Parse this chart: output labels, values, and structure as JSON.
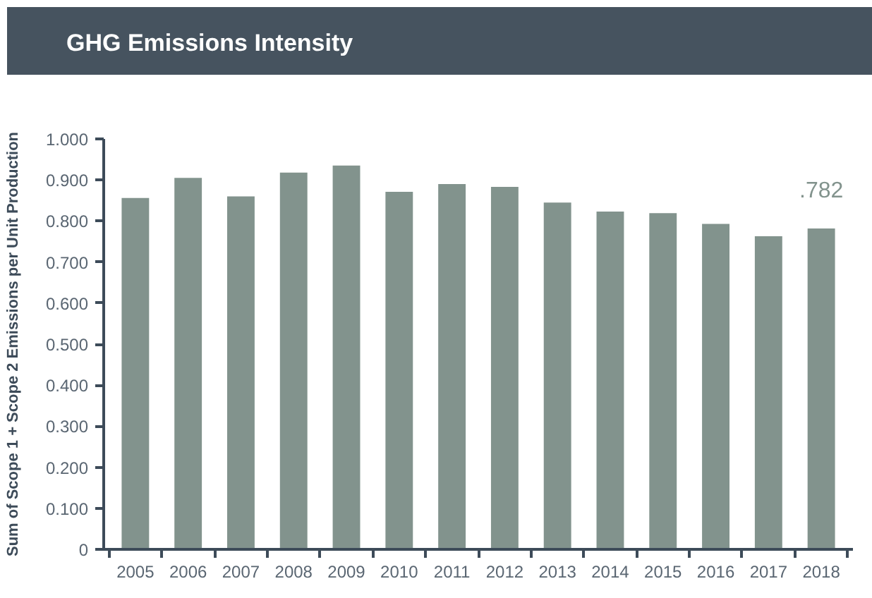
{
  "chart_data": {
    "type": "bar",
    "title": "GHG Emissions Intensity",
    "ylabel": "Sum of Scope 1 + Scope 2 Emissions per Unit Production",
    "categories": [
      "2005",
      "2006",
      "2007",
      "2008",
      "2009",
      "2010",
      "2011",
      "2012",
      "2013",
      "2014",
      "2015",
      "2016",
      "2017",
      "2018"
    ],
    "values": [
      0.856,
      0.905,
      0.86,
      0.918,
      0.935,
      0.871,
      0.89,
      0.883,
      0.845,
      0.823,
      0.819,
      0.793,
      0.763,
      0.782
    ],
    "value_labels": [
      null,
      null,
      null,
      null,
      null,
      null,
      null,
      null,
      null,
      null,
      null,
      null,
      null,
      ".782"
    ],
    "color": "#82938d",
    "ylim": [
      0,
      1.0
    ],
    "yticks": [
      0,
      {
        "value": 0.1,
        "label": "0.100"
      },
      {
        "value": 0.2,
        "label": "0.200"
      },
      {
        "value": 0.3,
        "label": "0.300"
      },
      {
        "value": 0.4,
        "label": "0.400"
      },
      {
        "value": 0.5,
        "label": "0.500"
      },
      {
        "value": 0.6,
        "label": "0.600"
      },
      {
        "value": 0.7,
        "label": "0.700"
      },
      {
        "value": 0.8,
        "label": "0.800"
      },
      {
        "value": 0.9,
        "label": "0.900"
      },
      {
        "value": 1.0,
        "label": "1.000"
      }
    ],
    "grid": false
  }
}
